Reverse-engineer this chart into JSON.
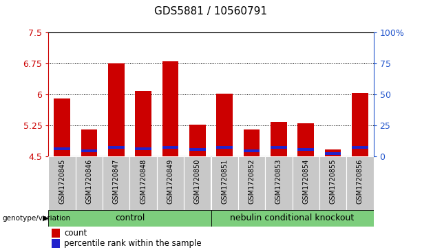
{
  "title": "GDS5881 / 10560791",
  "samples": [
    "GSM1720845",
    "GSM1720846",
    "GSM1720847",
    "GSM1720848",
    "GSM1720849",
    "GSM1720850",
    "GSM1720851",
    "GSM1720852",
    "GSM1720853",
    "GSM1720854",
    "GSM1720855",
    "GSM1720856"
  ],
  "red_values": [
    5.9,
    5.15,
    6.75,
    6.08,
    6.8,
    5.26,
    6.02,
    5.15,
    5.33,
    5.3,
    4.67,
    6.03
  ],
  "blue_values": [
    4.68,
    4.63,
    4.72,
    4.68,
    4.72,
    4.67,
    4.71,
    4.63,
    4.72,
    4.67,
    4.57,
    4.72
  ],
  "blue_heights": [
    0.07,
    0.07,
    0.07,
    0.07,
    0.07,
    0.07,
    0.07,
    0.07,
    0.07,
    0.07,
    0.07,
    0.07
  ],
  "ymin": 4.5,
  "ymax": 7.5,
  "yticks": [
    4.5,
    5.25,
    6.0,
    6.75,
    7.5
  ],
  "ytick_labels": [
    "4.5",
    "5.25",
    "6",
    "6.75",
    "7.5"
  ],
  "y2ticks_pct": [
    0,
    25,
    50,
    75,
    100
  ],
  "y2tick_labels": [
    "0",
    "25",
    "50",
    "75",
    "100%"
  ],
  "grid_lines": [
    5.25,
    6.0,
    6.75
  ],
  "bar_color_red": "#cc0000",
  "bar_color_blue": "#2222cc",
  "bar_width": 0.6,
  "control_label": "control",
  "knockout_label": "nebulin conditional knockout",
  "group_color": "#7dce7d",
  "group_row_label": "genotype/variation",
  "legend_count": "count",
  "legend_pct": "percentile rank within the sample",
  "axis_color_left": "#cc0000",
  "axis_color_right": "#2255cc",
  "xticklabel_bg": "#c8c8c8",
  "xticklabel_fontsize": 7,
  "title_fontsize": 11
}
